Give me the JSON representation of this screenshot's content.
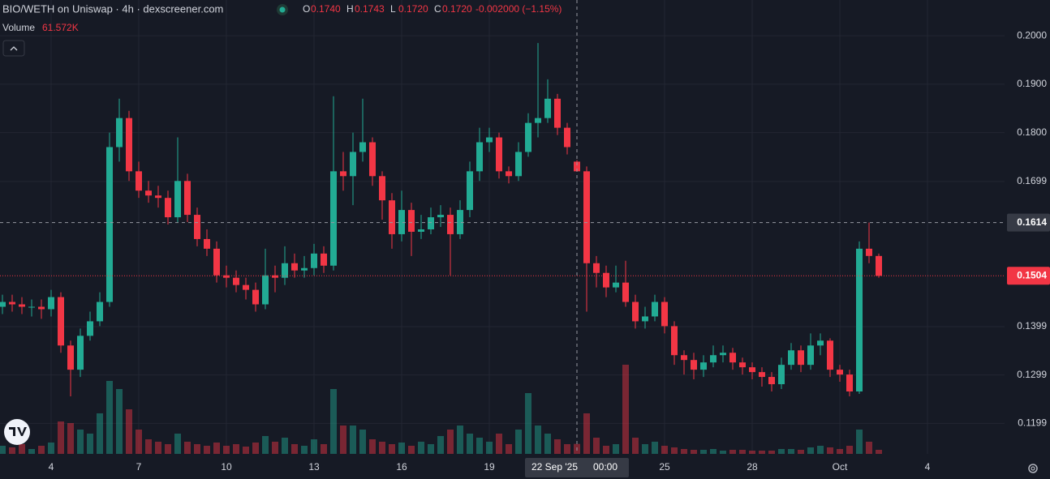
{
  "chart_data": {
    "type": "candlestick",
    "title": "BIO/WETH on Uniswap · 4h · dexscreener.com",
    "ohlc_legend": [
      {
        "key": "O",
        "value": "0.1740"
      },
      {
        "key": "H",
        "value": "0.1743"
      },
      {
        "key": "L",
        "value": "0.1720"
      },
      {
        "key": "C",
        "value": "0.1720"
      }
    ],
    "change": "-0.002000 (−1.15%)",
    "volume_label": "Volume",
    "volume_value": "61.572K",
    "up_color": "#22ab94",
    "down_color": "#f23645",
    "grid": true,
    "categories": [
      null,
      null,
      null,
      null,
      null,
      "4",
      null,
      null,
      null,
      null,
      null,
      null,
      null,
      null,
      "7",
      null,
      null,
      null,
      null,
      null,
      null,
      null,
      null,
      "10",
      null,
      null,
      null,
      null,
      null,
      null,
      null,
      null,
      "13",
      null,
      null,
      null,
      null,
      null,
      null,
      null,
      null,
      "16",
      null,
      null,
      null,
      null,
      null,
      null,
      null,
      null,
      "19",
      null,
      null,
      null,
      null,
      null,
      null,
      null,
      null,
      null,
      null,
      null,
      null,
      null,
      null,
      null,
      null,
      null,
      "25",
      null,
      null,
      null,
      null,
      null,
      null,
      null,
      null,
      "28",
      null,
      null,
      null,
      null,
      null,
      null,
      null,
      null,
      "Oct",
      null,
      null,
      null,
      null,
      null,
      null,
      null,
      null,
      "4"
    ],
    "open": [
      0.144,
      0.145,
      0.1445,
      0.144,
      0.144,
      0.1435,
      0.146,
      0.136,
      0.131,
      0.138,
      0.141,
      0.145,
      0.177,
      0.183,
      0.172,
      0.168,
      0.167,
      0.1665,
      0.1625,
      0.17,
      0.163,
      0.158,
      0.156,
      0.1505,
      0.15,
      0.1485,
      0.1475,
      0.1445,
      0.1505,
      0.15,
      0.153,
      0.1515,
      0.152,
      0.155,
      0.1525,
      0.172,
      0.171,
      0.176,
      0.178,
      0.171,
      0.166,
      0.159,
      0.164,
      0.1595,
      0.16,
      0.1625,
      0.163,
      0.159,
      0.164,
      0.172,
      0.178,
      0.179,
      0.172,
      0.171,
      0.176,
      0.182,
      0.183,
      0.187,
      0.181,
      0.174,
      0.172,
      0.153,
      0.151,
      0.148,
      0.149,
      0.145,
      0.141,
      0.142,
      0.145,
      0.14,
      0.134,
      0.133,
      0.131,
      0.1325,
      0.134,
      0.1345,
      0.1325,
      0.1315,
      0.1305,
      0.1295,
      0.128,
      0.132,
      0.135,
      0.132,
      0.136,
      0.137,
      0.131,
      0.13,
      0.1265,
      0.156,
      0.1545,
      null,
      null,
      null,
      null,
      null
    ],
    "high": [
      0.1465,
      0.1465,
      0.146,
      0.1455,
      0.1455,
      0.1475,
      0.147,
      0.137,
      0.1395,
      0.143,
      0.147,
      0.18,
      0.187,
      0.1845,
      0.174,
      0.17,
      0.169,
      0.168,
      0.179,
      0.1715,
      0.1645,
      0.16,
      0.1575,
      0.1525,
      0.1515,
      0.15,
      0.149,
      0.156,
      0.1525,
      0.1565,
      0.155,
      0.1545,
      0.157,
      0.1565,
      0.1875,
      0.176,
      0.18,
      0.187,
      0.179,
      0.172,
      0.1675,
      0.168,
      0.1655,
      0.163,
      0.1645,
      0.165,
      0.1645,
      0.166,
      0.174,
      0.181,
      0.181,
      0.18,
      0.173,
      0.178,
      0.184,
      0.1985,
      0.191,
      0.188,
      0.182,
      0.1743,
      0.173,
      0.1545,
      0.1525,
      0.1525,
      0.1535,
      0.1465,
      0.144,
      0.1465,
      0.146,
      0.141,
      0.135,
      0.1345,
      0.134,
      0.136,
      0.136,
      0.1355,
      0.1335,
      0.1325,
      0.1315,
      0.1305,
      0.1335,
      0.1365,
      0.136,
      0.1385,
      0.1385,
      0.1375,
      0.132,
      0.131,
      0.1575,
      0.1614,
      0.155,
      null,
      null,
      null,
      null,
      null
    ],
    "low": [
      0.1425,
      0.143,
      0.1425,
      0.142,
      0.1415,
      0.142,
      0.1345,
      0.1255,
      0.1295,
      0.137,
      0.14,
      0.144,
      0.174,
      0.17,
      0.1665,
      0.1655,
      0.1645,
      0.161,
      0.1615,
      0.1615,
      0.1565,
      0.1545,
      0.149,
      0.148,
      0.147,
      0.1455,
      0.143,
      0.1435,
      0.147,
      0.1485,
      0.15,
      0.15,
      0.1505,
      0.151,
      0.1515,
      0.168,
      0.165,
      0.174,
      0.169,
      0.162,
      0.156,
      0.1575,
      0.1545,
      0.158,
      0.159,
      0.1605,
      0.1505,
      0.158,
      0.1625,
      0.17,
      0.176,
      0.1705,
      0.1695,
      0.17,
      0.175,
      0.179,
      0.182,
      0.1795,
      0.1755,
      0.172,
      0.143,
      0.148,
      0.146,
      0.147,
      0.144,
      0.1395,
      0.1395,
      0.141,
      0.1385,
      0.132,
      0.13,
      0.129,
      0.1295,
      0.1315,
      0.1325,
      0.131,
      0.13,
      0.129,
      0.1275,
      0.1265,
      0.127,
      0.131,
      0.1305,
      0.131,
      0.134,
      0.1295,
      0.1285,
      0.1255,
      0.126,
      0.153,
      0.15,
      null,
      null,
      null,
      null,
      null
    ],
    "close": [
      0.145,
      0.1445,
      0.144,
      0.144,
      0.1435,
      0.146,
      0.136,
      0.131,
      0.138,
      0.141,
      0.145,
      0.177,
      0.183,
      0.172,
      0.168,
      0.167,
      0.1665,
      0.1625,
      0.17,
      0.163,
      0.158,
      0.156,
      0.1505,
      0.15,
      0.1485,
      0.1475,
      0.1445,
      0.1505,
      0.15,
      0.153,
      0.1515,
      0.152,
      0.155,
      0.1525,
      0.172,
      0.171,
      0.176,
      0.178,
      0.171,
      0.166,
      0.159,
      0.164,
      0.1595,
      0.16,
      0.1625,
      0.163,
      0.159,
      0.164,
      0.172,
      0.178,
      0.179,
      0.172,
      0.171,
      0.176,
      0.182,
      0.183,
      0.187,
      0.181,
      0.177,
      0.172,
      0.153,
      0.151,
      0.148,
      0.149,
      0.145,
      0.141,
      0.142,
      0.145,
      0.14,
      0.134,
      0.133,
      0.131,
      0.1325,
      0.134,
      0.1345,
      0.1325,
      0.1315,
      0.1305,
      0.1295,
      0.128,
      0.132,
      0.135,
      0.132,
      0.136,
      0.137,
      0.131,
      0.13,
      0.1265,
      0.156,
      0.1545,
      0.1504,
      null,
      null,
      null,
      null,
      null
    ],
    "volume": [
      50000,
      40000,
      60000,
      30000,
      50000,
      70000,
      200000,
      190000,
      150000,
      125000,
      250000,
      450000,
      400000,
      275000,
      150000,
      90000,
      75000,
      60000,
      125000,
      75000,
      60000,
      50000,
      70000,
      50000,
      60000,
      45000,
      70000,
      110000,
      75000,
      100000,
      60000,
      50000,
      90000,
      60000,
      400000,
      175000,
      175000,
      150000,
      90000,
      75000,
      60000,
      70000,
      50000,
      75000,
      60000,
      110000,
      150000,
      175000,
      125000,
      100000,
      75000,
      125000,
      60000,
      150000,
      375000,
      175000,
      125000,
      90000,
      60000,
      61572,
      250000,
      100000,
      50000,
      60000,
      550000,
      100000,
      60000,
      75000,
      50000,
      40000,
      30000,
      25000,
      25000,
      30000,
      20000,
      25000,
      25000,
      20000,
      20000,
      20000,
      30000,
      30000,
      25000,
      40000,
      50000,
      40000,
      30000,
      50000,
      150000,
      75000,
      25000,
      null,
      null,
      null,
      null,
      null
    ],
    "ylim": [
      0.1136,
      0.2074
    ],
    "yticks": [
      {
        "value": 0.2,
        "label": "0.2000"
      },
      {
        "value": 0.19,
        "label": "0.1900"
      },
      {
        "value": 0.18,
        "label": "0.1800"
      },
      {
        "value": 0.1699,
        "label": "0.1699"
      },
      {
        "value": 0.1399,
        "label": "0.1399"
      },
      {
        "value": 0.1299,
        "label": "0.1299"
      },
      {
        "value": 0.1199,
        "label": "0.1199"
      }
    ],
    "crosshair_date": "22 Sep '25",
    "crosshair_time": "00:00",
    "crosshair_price": {
      "value": 0.1614,
      "label": "0.1614"
    },
    "last_price": {
      "value": 0.1504,
      "label": "0.1504"
    }
  }
}
